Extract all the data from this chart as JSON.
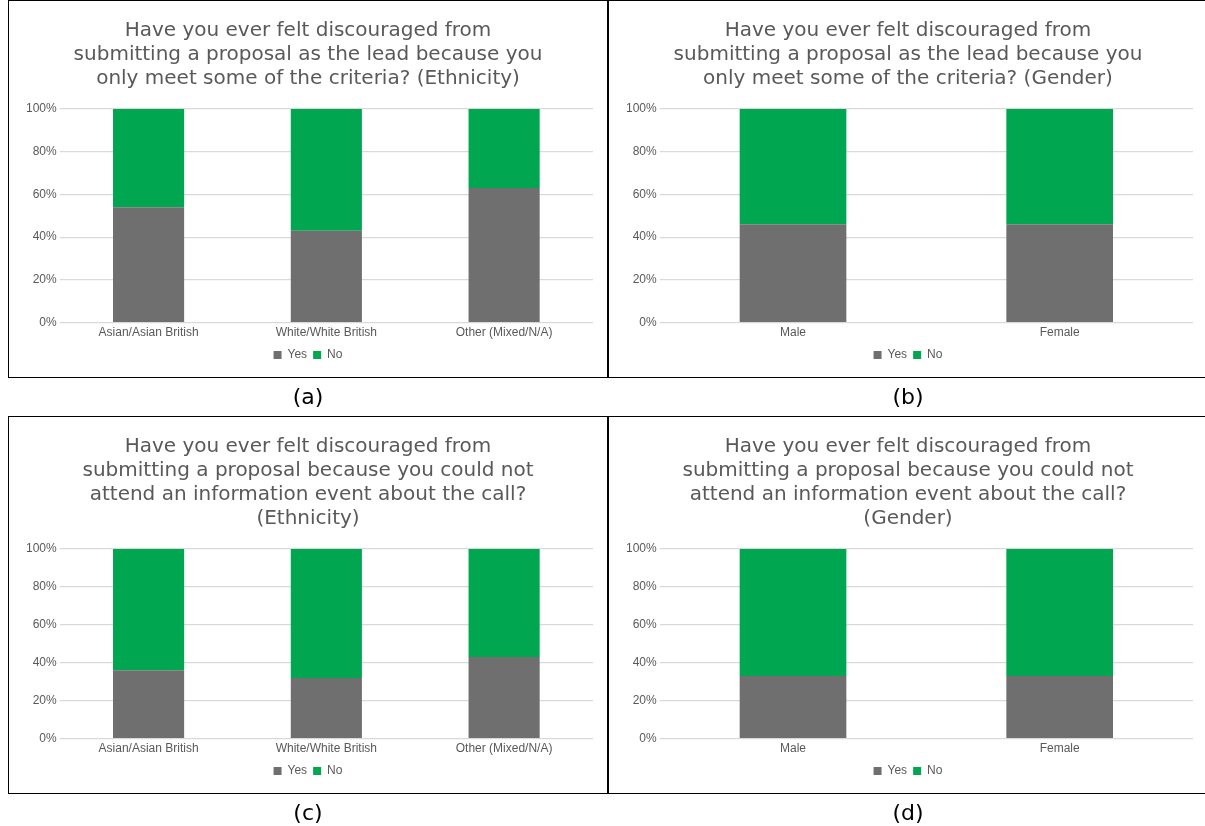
{
  "chart_data": [
    {
      "type": "bar",
      "stacked": true,
      "title": "Have you ever felt discouraged from submitting a proposal as the lead because you only meet some of the criteria? (Ethnicity)",
      "categories": [
        "Asian/Asian British",
        "White/White British",
        "Other (Mixed/N/A)"
      ],
      "series": [
        {
          "name": "Yes",
          "color": "#6f6f6f",
          "values": [
            54,
            43,
            63
          ]
        },
        {
          "name": "No",
          "color": "#00a650",
          "values": [
            46,
            57,
            37
          ]
        }
      ],
      "ylim": [
        0,
        100
      ],
      "yticks": [
        {
          "value": 0,
          "label": "0%"
        },
        {
          "value": 20,
          "label": "20%"
        },
        {
          "value": 40,
          "label": "40%"
        },
        {
          "value": 60,
          "label": "60%"
        },
        {
          "value": 80,
          "label": "80%"
        },
        {
          "value": 100,
          "label": "100%"
        }
      ],
      "grid": "y",
      "legend": "bottom",
      "annotations": [
        "(a)"
      ]
    },
    {
      "type": "bar",
      "stacked": true,
      "title": "Have you ever felt discouraged from submitting a proposal as the lead because you only meet some of the criteria? (Gender)",
      "categories": [
        "Male",
        "Female"
      ],
      "series": [
        {
          "name": "Yes",
          "color": "#6f6f6f",
          "values": [
            46,
            46
          ]
        },
        {
          "name": "No",
          "color": "#00a650",
          "values": [
            54,
            54
          ]
        }
      ],
      "ylim": [
        0,
        100
      ],
      "yticks": [
        {
          "value": 0,
          "label": "0%"
        },
        {
          "value": 20,
          "label": "20%"
        },
        {
          "value": 40,
          "label": "40%"
        },
        {
          "value": 60,
          "label": "60%"
        },
        {
          "value": 80,
          "label": "80%"
        },
        {
          "value": 100,
          "label": "100%"
        }
      ],
      "grid": "y",
      "legend": "bottom",
      "annotations": [
        "(b)"
      ]
    },
    {
      "type": "bar",
      "stacked": true,
      "title": "Have you ever felt discouraged from submitting a proposal because you could not attend an information event about the call? (Ethnicity)",
      "categories": [
        "Asian/Asian British",
        "White/White British",
        "Other (Mixed/N/A)"
      ],
      "series": [
        {
          "name": "Yes",
          "color": "#6f6f6f",
          "values": [
            36,
            32,
            43
          ]
        },
        {
          "name": "No",
          "color": "#00a650",
          "values": [
            64,
            68,
            57
          ]
        }
      ],
      "ylim": [
        0,
        100
      ],
      "yticks": [
        {
          "value": 0,
          "label": "0%"
        },
        {
          "value": 20,
          "label": "20%"
        },
        {
          "value": 40,
          "label": "40%"
        },
        {
          "value": 60,
          "label": "60%"
        },
        {
          "value": 80,
          "label": "80%"
        },
        {
          "value": 100,
          "label": "100%"
        }
      ],
      "grid": "y",
      "legend": "bottom",
      "annotations": [
        "(c)"
      ]
    },
    {
      "type": "bar",
      "stacked": true,
      "title": "Have you ever felt discouraged from submitting a proposal because you could not attend an information event about the call? (Gender)",
      "categories": [
        "Male",
        "Female"
      ],
      "series": [
        {
          "name": "Yes",
          "color": "#6f6f6f",
          "values": [
            33,
            33
          ]
        },
        {
          "name": "No",
          "color": "#00a650",
          "values": [
            67,
            67
          ]
        }
      ],
      "ylim": [
        0,
        100
      ],
      "yticks": [
        {
          "value": 0,
          "label": "0%"
        },
        {
          "value": 20,
          "label": "20%"
        },
        {
          "value": 40,
          "label": "40%"
        },
        {
          "value": 60,
          "label": "60%"
        },
        {
          "value": 80,
          "label": "80%"
        },
        {
          "value": 100,
          "label": "100%"
        }
      ],
      "grid": "y",
      "legend": "bottom",
      "annotations": [
        "(d)"
      ]
    }
  ]
}
